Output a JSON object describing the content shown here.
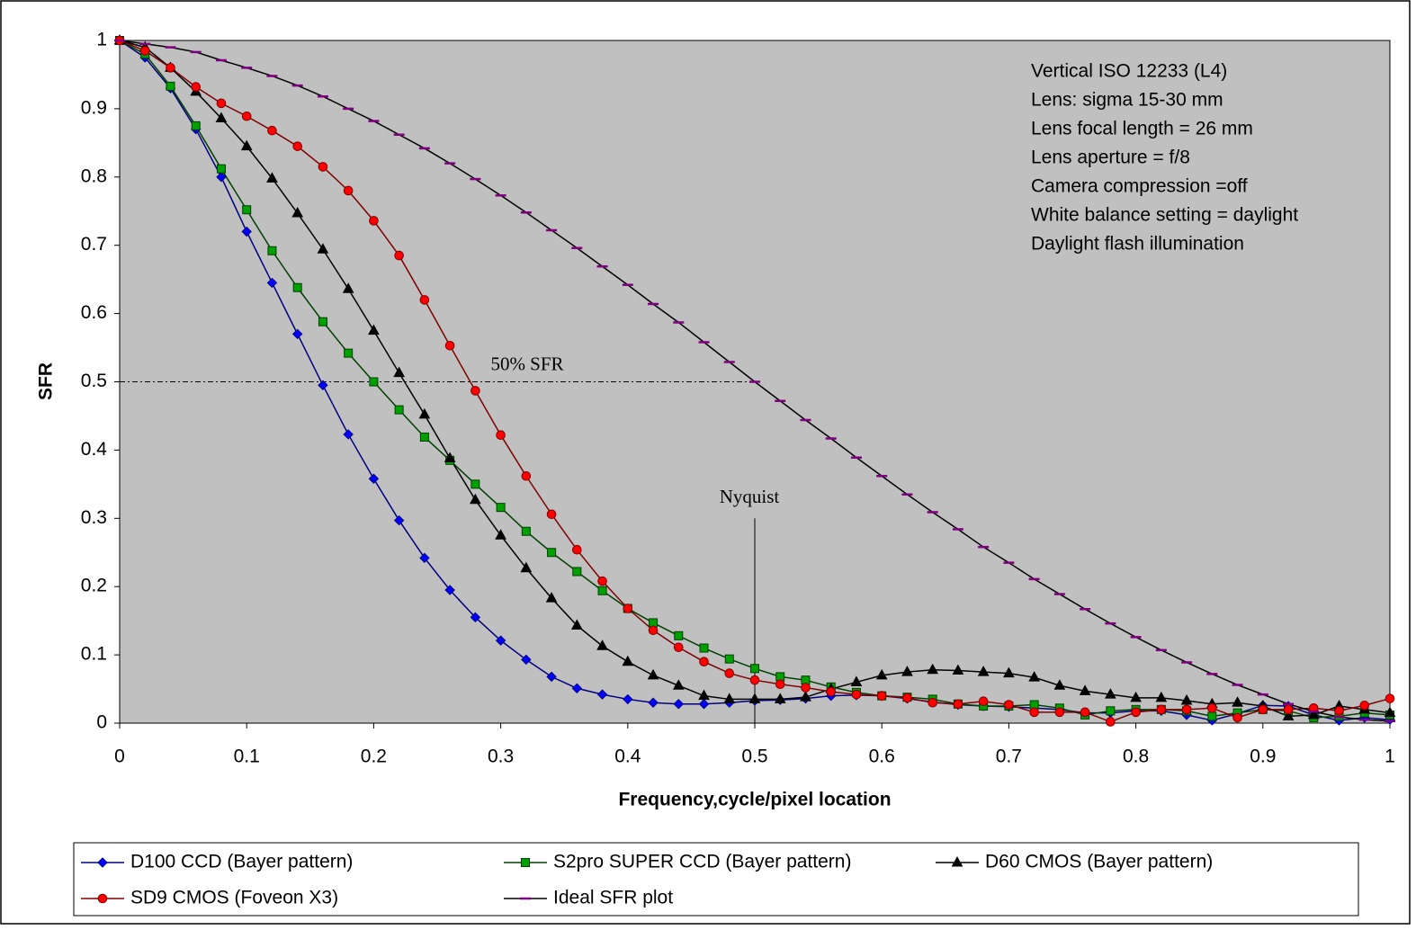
{
  "chart_data": {
    "type": "line",
    "x_label": "Frequency,cycle/pixel location",
    "y_label": "SFR",
    "xlim": [
      0,
      1
    ],
    "ylim": [
      0,
      1
    ],
    "xticks": [
      0,
      0.1,
      0.2,
      0.3,
      0.4,
      0.5,
      0.6,
      0.7,
      0.8,
      0.9,
      1
    ],
    "yticks": [
      0,
      0.1,
      0.2,
      0.3,
      0.4,
      0.5,
      0.6,
      0.7,
      0.8,
      0.9,
      1
    ],
    "grid": false,
    "plot_background": "#c0c0c0",
    "legend_position": "bottom",
    "x": [
      0,
      0.02,
      0.04,
      0.06,
      0.08,
      0.1,
      0.12,
      0.14,
      0.16,
      0.18,
      0.2,
      0.22,
      0.24,
      0.26,
      0.28,
      0.3,
      0.32,
      0.34,
      0.36,
      0.38,
      0.4,
      0.42,
      0.44,
      0.46,
      0.48,
      0.5,
      0.52,
      0.54,
      0.56,
      0.58,
      0.6,
      0.62,
      0.64,
      0.66,
      0.68,
      0.7,
      0.72,
      0.74,
      0.76,
      0.78,
      0.8,
      0.82,
      0.84,
      0.86,
      0.88,
      0.9,
      0.92,
      0.94,
      0.96,
      0.98,
      1
    ],
    "series": [
      {
        "name": "D100 CCD (Bayer pattern)",
        "color": "#000080",
        "marker": "diamond",
        "marker_color": "#0000ff",
        "values": [
          1,
          0.975,
          0.93,
          0.87,
          0.8,
          0.72,
          0.645,
          0.57,
          0.495,
          0.423,
          0.358,
          0.297,
          0.242,
          0.195,
          0.155,
          0.121,
          0.093,
          0.068,
          0.051,
          0.042,
          0.035,
          0.03,
          0.028,
          0.028,
          0.03,
          0.033,
          0.034,
          0.036,
          0.04,
          0.041,
          0.04,
          0.036,
          0.031,
          0.027,
          0.025,
          0.024,
          0.022,
          0.02,
          0.015,
          0.015,
          0.018,
          0.018,
          0.012,
          0.004,
          0.014,
          0.026,
          0.025,
          0.012,
          0.004,
          0.008,
          0.005
        ]
      },
      {
        "name": "S2pro SUPER CCD (Bayer pattern)",
        "color": "#004000",
        "marker": "square",
        "marker_color": "#00a000",
        "values": [
          1,
          0.98,
          0.933,
          0.875,
          0.812,
          0.752,
          0.692,
          0.638,
          0.588,
          0.542,
          0.5,
          0.459,
          0.419,
          0.385,
          0.35,
          0.316,
          0.281,
          0.25,
          0.222,
          0.194,
          0.168,
          0.147,
          0.128,
          0.11,
          0.094,
          0.08,
          0.068,
          0.063,
          0.053,
          0.045,
          0.04,
          0.038,
          0.035,
          0.028,
          0.025,
          0.025,
          0.027,
          0.022,
          0.012,
          0.018,
          0.02,
          0.02,
          0.018,
          0.01,
          0.015,
          0.02,
          0.018,
          0.008,
          0.01,
          0.015,
          0.012
        ]
      },
      {
        "name": "D60 CMOS (Bayer pattern)",
        "color": "#000000",
        "marker": "triangle",
        "marker_color": "#000000",
        "values": [
          1,
          0.99,
          0.96,
          0.925,
          0.886,
          0.845,
          0.798,
          0.747,
          0.694,
          0.636,
          0.575,
          0.513,
          0.452,
          0.388,
          0.327,
          0.275,
          0.227,
          0.183,
          0.143,
          0.113,
          0.09,
          0.07,
          0.055,
          0.04,
          0.035,
          0.035,
          0.035,
          0.038,
          0.05,
          0.06,
          0.07,
          0.075,
          0.078,
          0.077,
          0.075,
          0.073,
          0.067,
          0.055,
          0.047,
          0.042,
          0.037,
          0.037,
          0.033,
          0.028,
          0.03,
          0.025,
          0.01,
          0.012,
          0.025,
          0.02,
          0.015
        ]
      },
      {
        "name": "SD9 CMOS (Foveon X3)",
        "color": "#800000",
        "marker": "circle",
        "marker_color": "#ff0000",
        "values": [
          1,
          0.985,
          0.96,
          0.932,
          0.908,
          0.889,
          0.868,
          0.845,
          0.815,
          0.78,
          0.736,
          0.685,
          0.62,
          0.553,
          0.487,
          0.422,
          0.362,
          0.306,
          0.254,
          0.208,
          0.168,
          0.136,
          0.111,
          0.09,
          0.073,
          0.063,
          0.057,
          0.052,
          0.046,
          0.042,
          0.04,
          0.037,
          0.03,
          0.028,
          0.032,
          0.027,
          0.016,
          0.016,
          0.016,
          0.002,
          0.016,
          0.02,
          0.02,
          0.022,
          0.008,
          0.02,
          0.02,
          0.022,
          0.018,
          0.026,
          0.036
        ]
      },
      {
        "name": "Ideal SFR plot",
        "color": "#000000",
        "marker": "dash",
        "marker_color": "#800080",
        "values": [
          1,
          0.995,
          0.99,
          0.983,
          0.971,
          0.96,
          0.948,
          0.934,
          0.918,
          0.9,
          0.882,
          0.862,
          0.842,
          0.82,
          0.797,
          0.773,
          0.748,
          0.722,
          0.696,
          0.669,
          0.642,
          0.614,
          0.587,
          0.558,
          0.529,
          0.5,
          0.472,
          0.444,
          0.417,
          0.389,
          0.362,
          0.335,
          0.309,
          0.284,
          0.258,
          0.235,
          0.211,
          0.189,
          0.167,
          0.146,
          0.126,
          0.107,
          0.089,
          0.072,
          0.056,
          0.042,
          0.028,
          0.017,
          0.009,
          0.005,
          0.003
        ]
      }
    ],
    "hline": {
      "y": 0.5,
      "x_end": 0.5,
      "label": "50% SFR"
    },
    "vline": {
      "x": 0.5,
      "y_end": 0.3,
      "label": "Nyquist"
    },
    "notes": [
      "Vertical ISO 12233 (L4)",
      "Lens: sigma 15-30 mm",
      "Lens focal length = 26 mm",
      "Lens aperture = f/8",
      "Camera compression =off",
      "White balance setting = daylight",
      "Daylight flash illumination"
    ]
  }
}
